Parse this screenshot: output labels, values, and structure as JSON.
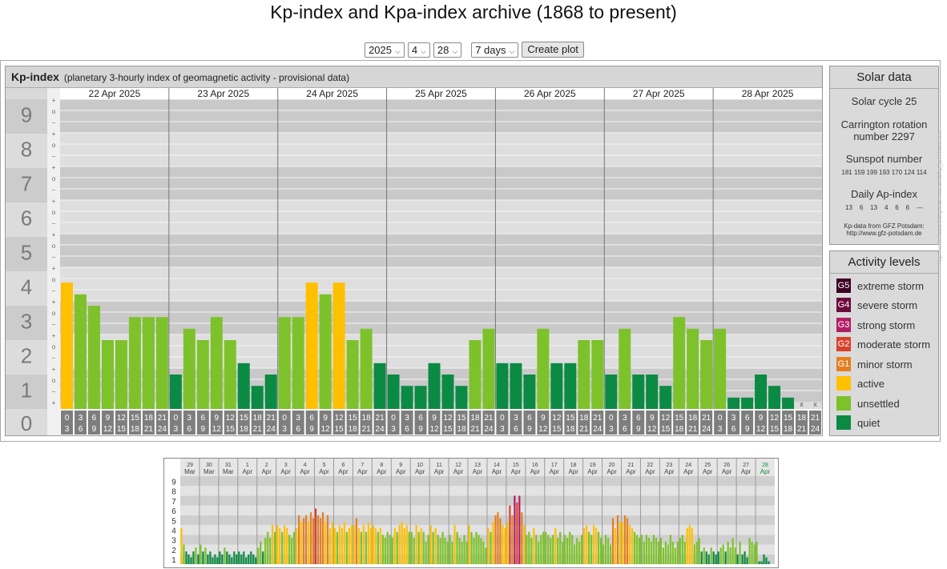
{
  "title": "Kp-index and Kpa-index archive (1868 to present)",
  "controls": {
    "year": "2025",
    "month": "4",
    "day": "28",
    "range": "7 days",
    "create_label": "Create plot"
  },
  "chart_header": {
    "title": "Kp-index",
    "subtitle": "(planetary 3-hourly index of geomagnetic activity - provisional data)"
  },
  "colors": {
    "quiet": "#0b8a43",
    "unsettled": "#7dc22a",
    "active": "#ffc000",
    "minor": "#e67e22",
    "moderate": "#d9412c",
    "strong": "#b21e66",
    "severe": "#6d0a3c",
    "extreme": "#3d0126"
  },
  "chart_data": {
    "type": "bar",
    "ylim": [
      0,
      9
    ],
    "y_ticks": [
      "0",
      "1",
      "2",
      "3",
      "4",
      "5",
      "6",
      "7",
      "8",
      "9"
    ],
    "sub_ticks": [
      "+",
      "o",
      "−"
    ],
    "days": [
      "22 Apr 2025",
      "23 Apr 2025",
      "24 Apr 2025",
      "25 Apr 2025",
      "26 Apr 2025",
      "27 Apr 2025",
      "28 Apr 2025"
    ],
    "hour_labels": [
      [
        "0",
        "3"
      ],
      [
        "3",
        "6"
      ],
      [
        "6",
        "9"
      ],
      [
        "9",
        "12"
      ],
      [
        "12",
        "15"
      ],
      [
        "15",
        "18"
      ],
      [
        "18",
        "21"
      ],
      [
        "21",
        "24"
      ]
    ],
    "missing_mark": "x",
    "values": [
      3.67,
      3.33,
      3.0,
      2.0,
      2.0,
      2.67,
      2.67,
      2.67,
      1.0,
      2.33,
      2.0,
      2.67,
      2.0,
      1.33,
      0.67,
      1.0,
      2.67,
      2.67,
      3.67,
      3.33,
      3.67,
      2.0,
      2.33,
      1.33,
      1.0,
      0.67,
      0.67,
      1.33,
      1.0,
      0.67,
      2.0,
      2.33,
      1.33,
      1.33,
      1.0,
      2.33,
      1.33,
      1.33,
      2.0,
      2.0,
      1.0,
      2.33,
      1.0,
      1.0,
      0.67,
      2.67,
      2.33,
      2.0,
      2.33,
      0.33,
      0.33,
      1.0,
      0.67,
      0.33,
      null,
      null
    ]
  },
  "solar": {
    "title": "Solar data",
    "cycle": "Solar cycle 25",
    "carrington_1": "Carrington rotation",
    "carrington_2": "number 2297",
    "sunspot_title": "Sunspot number",
    "sunspots": "181 159 199 193 170 124 114",
    "ap_title": "Daily Ap-index",
    "ap_values": "13    6    13    4    6    6    ---",
    "source_1": "Kp-data from GFZ Potsdam:",
    "source_2": "http://www.gfz-potsdam.de"
  },
  "activity": {
    "title": "Activity levels",
    "levels": [
      {
        "code": "G5",
        "label": "extreme storm"
      },
      {
        "code": "G4",
        "label": "severe storm"
      },
      {
        "code": "G3",
        "label": "strong storm"
      },
      {
        "code": "G2",
        "label": "moderate storm"
      },
      {
        "code": "G1",
        "label": "minor storm"
      },
      {
        "code": "",
        "label": "active"
      },
      {
        "code": "",
        "label": "unsettled"
      },
      {
        "code": "",
        "label": "quiet"
      }
    ]
  },
  "watermark": "http://www.fiesenberg-sternwarte.de/kp_archive.shtml",
  "overview": {
    "days": [
      {
        "d": "29",
        "m": "Mar"
      },
      {
        "d": "30",
        "m": "Mar"
      },
      {
        "d": "31",
        "m": "Mar"
      },
      {
        "d": "1",
        "m": "Apr"
      },
      {
        "d": "2",
        "m": "Apr"
      },
      {
        "d": "3",
        "m": "Apr"
      },
      {
        "d": "4",
        "m": "Apr"
      },
      {
        "d": "5",
        "m": "Apr"
      },
      {
        "d": "6",
        "m": "Apr"
      },
      {
        "d": "7",
        "m": "Apr"
      },
      {
        "d": "8",
        "m": "Apr"
      },
      {
        "d": "9",
        "m": "Apr"
      },
      {
        "d": "10",
        "m": "Apr"
      },
      {
        "d": "11",
        "m": "Apr"
      },
      {
        "d": "12",
        "m": "Apr"
      },
      {
        "d": "13",
        "m": "Apr"
      },
      {
        "d": "14",
        "m": "Apr"
      },
      {
        "d": "15",
        "m": "Apr"
      },
      {
        "d": "16",
        "m": "Apr"
      },
      {
        "d": "17",
        "m": "Apr"
      },
      {
        "d": "18",
        "m": "Apr"
      },
      {
        "d": "19",
        "m": "Apr"
      },
      {
        "d": "20",
        "m": "Apr"
      },
      {
        "d": "21",
        "m": "Apr"
      },
      {
        "d": "22",
        "m": "Apr"
      },
      {
        "d": "23",
        "m": "Apr"
      },
      {
        "d": "24",
        "m": "Apr"
      },
      {
        "d": "25",
        "m": "Apr"
      },
      {
        "d": "26",
        "m": "Apr"
      },
      {
        "d": "27",
        "m": "Apr"
      },
      {
        "d": "28",
        "m": "Apr"
      }
    ],
    "y_ticks": [
      "1",
      "2",
      "3",
      "4",
      "5",
      "6",
      "7",
      "8",
      "9"
    ],
    "values": [
      3.7,
      2.0,
      1.3,
      1.0,
      0.7,
      1.3,
      1.7,
      1.0,
      2.0,
      1.3,
      1.7,
      1.0,
      1.3,
      0.7,
      1.0,
      0.7,
      1.3,
      1.0,
      1.7,
      1.3,
      1.0,
      0.7,
      1.3,
      1.0,
      1.3,
      1.0,
      1.3,
      0.7,
      1.0,
      1.3,
      1.0,
      0.7,
      1.7,
      2.3,
      1.3,
      2.7,
      3.3,
      2.7,
      4.0,
      3.3,
      4.0,
      3.7,
      3.3,
      4.0,
      3.7,
      3.0,
      2.7,
      3.3,
      3.7,
      5.0,
      4.3,
      4.7,
      5.0,
      4.3,
      5.3,
      4.7,
      5.7,
      5.0,
      4.7,
      5.3,
      4.3,
      5.0,
      3.7,
      4.3,
      3.7,
      3.3,
      4.0,
      3.7,
      4.3,
      3.3,
      3.7,
      4.0,
      4.0,
      4.7,
      3.7,
      3.3,
      4.0,
      3.3,
      4.3,
      3.7,
      4.0,
      3.7,
      3.3,
      3.7,
      3.0,
      2.7,
      3.3,
      3.0,
      2.7,
      3.7,
      3.3,
      4.0,
      4.3,
      3.7,
      4.0,
      3.3,
      3.3,
      2.7,
      4.0,
      3.3,
      3.7,
      3.3,
      2.3,
      3.0,
      4.0,
      3.3,
      3.7,
      3.0,
      2.7,
      3.3,
      2.7,
      2.3,
      3.0,
      2.3,
      4.0,
      3.3,
      2.7,
      2.3,
      3.0,
      2.3,
      4.0,
      3.3,
      2.7,
      3.3,
      3.0,
      2.7,
      2.3,
      1.7,
      3.7,
      3.3,
      4.3,
      5.0,
      5.3,
      4.7,
      4.0,
      3.7,
      4.3,
      6.0,
      5.0,
      7.0,
      6.3,
      7.0,
      5.3,
      4.0,
      3.0,
      3.3,
      2.7,
      3.7,
      3.0,
      2.3,
      3.0,
      3.3,
      3.3,
      3.0,
      2.7,
      3.0,
      3.7,
      2.7,
      3.3,
      2.3,
      3.0,
      2.7,
      3.3,
      3.0,
      2.0,
      2.7,
      2.3,
      3.0,
      3.7,
      4.0,
      3.3,
      3.0,
      4.0,
      3.7,
      3.3,
      2.7,
      2.0,
      3.0,
      2.7,
      2.0,
      4.7,
      3.7,
      5.0,
      4.3,
      4.3,
      5.0,
      4.7,
      4.0,
      3.7,
      3.3,
      3.0,
      2.7,
      3.0,
      2.3,
      3.0,
      2.7,
      2.3,
      3.0,
      2.7,
      2.3,
      2.7,
      1.7,
      2.3,
      2.0,
      3.0,
      2.3,
      1.7,
      2.3,
      2.7,
      3.0,
      2.3,
      3.7,
      4.0,
      3.7,
      2.0,
      2.3,
      2.7,
      1.3,
      1.7,
      1.3,
      1.0,
      1.7,
      1.3,
      1.0,
      1.3,
      1.7,
      2.0,
      1.3,
      2.3,
      1.7,
      2.7,
      1.7,
      1.0,
      2.3,
      1.0,
      1.3,
      0.7,
      2.7,
      2.3,
      2.0,
      2.3,
      0.3,
      0.3,
      1.0,
      0.7,
      0.3,
      null,
      null
    ]
  }
}
